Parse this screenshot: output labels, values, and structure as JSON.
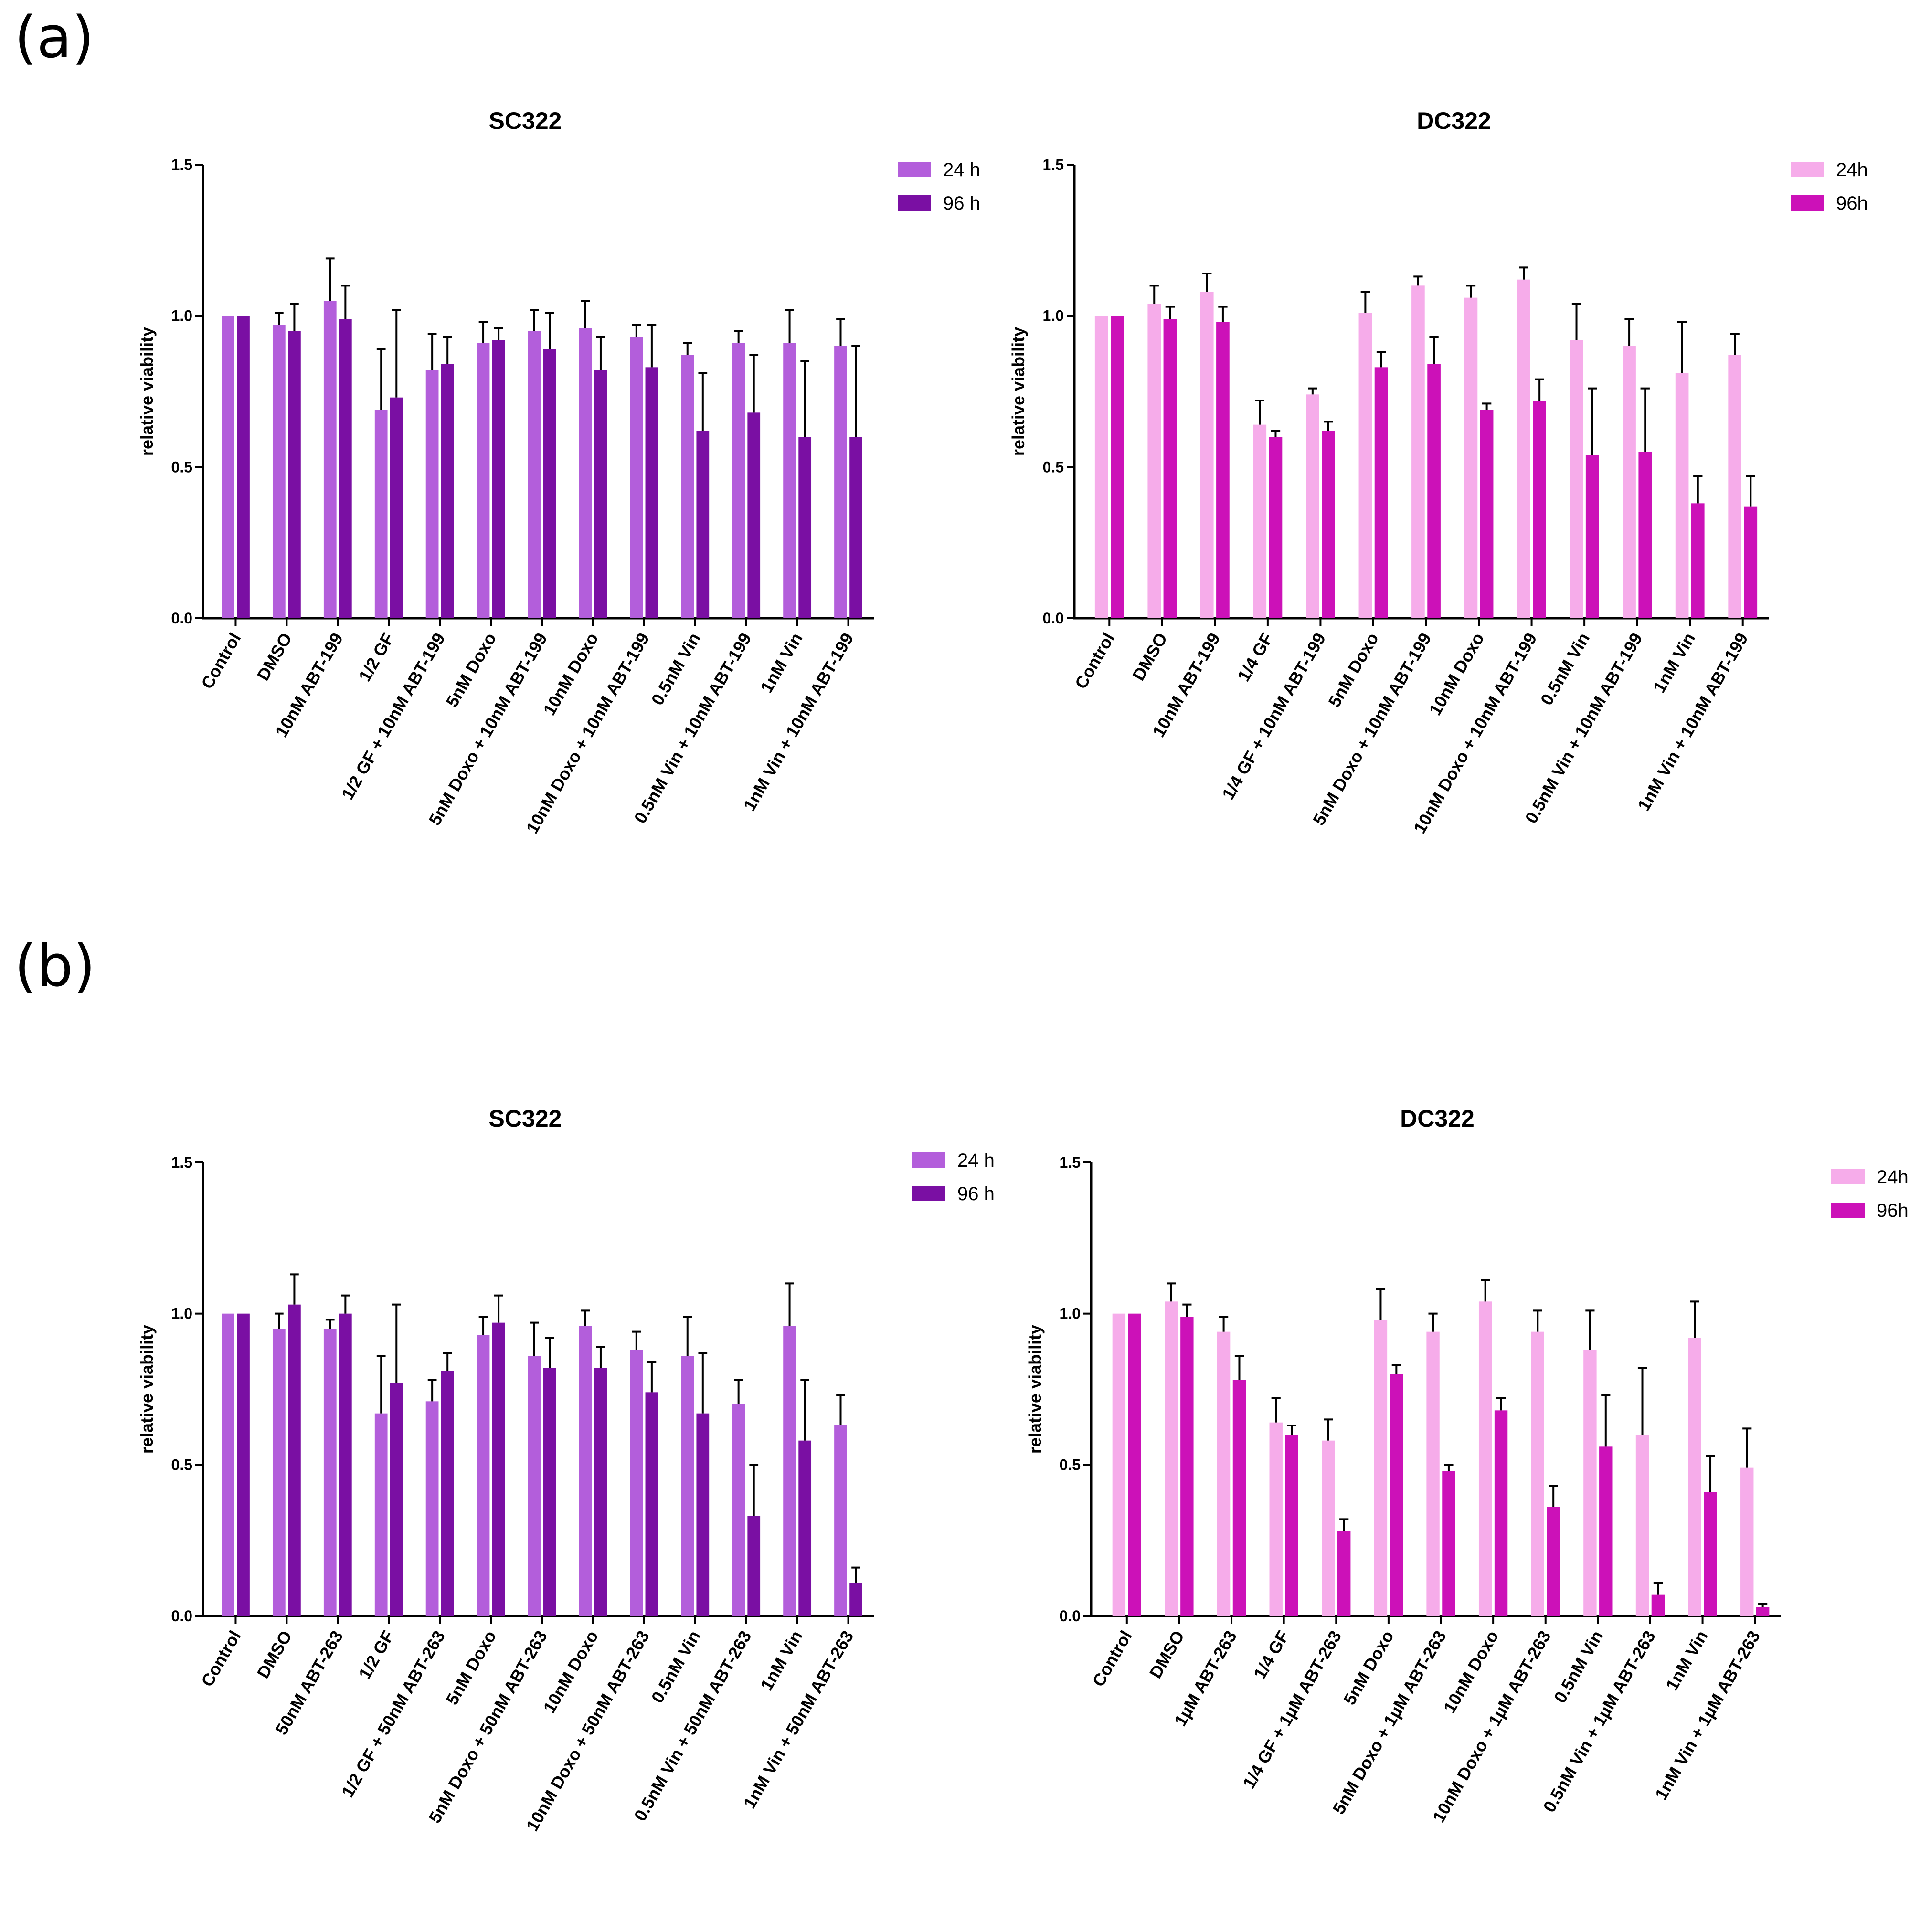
{
  "panels": [
    {
      "label": "(a)"
    },
    {
      "label": "(b)"
    }
  ],
  "chart_data": [
    {
      "type": "bar",
      "panel": "(a)",
      "title": "SC322",
      "ylabel": "relative viability",
      "ylim": [
        0,
        1.5
      ],
      "yticks": [
        "0.0",
        "0.5",
        "1.0",
        "1.5"
      ],
      "legend_position": "top-right",
      "categories": [
        "Control",
        "DMSO",
        "10nM ABT-199",
        "1/2 GF",
        "1/2 GF + 10nM ABT-199",
        "5nM Doxo",
        "5nM Doxo + 10nM ABT-199",
        "10nM Doxo",
        "10nM Doxo + 10nM ABT-199",
        "0.5nM Vin",
        "0.5nM Vin + 10nM ABT-199",
        "1nM Vin",
        "1nM Vin + 10nM ABT-199"
      ],
      "series": [
        {
          "name": "24 h",
          "color": "#b35edb",
          "values": [
            1.0,
            0.97,
            1.05,
            0.69,
            0.82,
            0.91,
            0.95,
            0.96,
            0.93,
            0.87,
            0.91,
            0.91,
            0.9
          ],
          "errors": [
            0,
            0.04,
            0.14,
            0.2,
            0.12,
            0.07,
            0.07,
            0.09,
            0.04,
            0.04,
            0.04,
            0.11,
            0.09
          ]
        },
        {
          "name": "96 h",
          "color": "#7a0fa3",
          "values": [
            1.0,
            0.95,
            0.99,
            0.73,
            0.84,
            0.92,
            0.89,
            0.82,
            0.83,
            0.62,
            0.68,
            0.6,
            0.6
          ],
          "errors": [
            0,
            0.09,
            0.11,
            0.29,
            0.09,
            0.04,
            0.12,
            0.11,
            0.14,
            0.19,
            0.19,
            0.25,
            0.3
          ]
        }
      ]
    },
    {
      "type": "bar",
      "panel": "(a)",
      "title": "DC322",
      "ylabel": "relative viability",
      "ylim": [
        0,
        1.5
      ],
      "yticks": [
        "0.0",
        "0.5",
        "1.0",
        "1.5"
      ],
      "legend_position": "top-right",
      "categories": [
        "Control",
        "DMSO",
        "10nM ABT-199",
        "1/4 GF",
        "1/4 GF + 10nM ABT-199",
        "5nM Doxo",
        "5nM Doxo + 10nM ABT-199",
        "10nM Doxo",
        "10nM Doxo + 10nM ABT-199",
        "0.5nM Vin",
        "0.5nM Vin + 10nM ABT-199",
        "1nM Vin",
        "1nM Vin + 10nM ABT-199"
      ],
      "series": [
        {
          "name": "24h",
          "color": "#f6acea",
          "values": [
            1.0,
            1.04,
            1.08,
            0.64,
            0.74,
            1.01,
            1.1,
            1.06,
            1.12,
            0.92,
            0.9,
            0.81,
            0.87
          ],
          "errors": [
            0,
            0.06,
            0.06,
            0.08,
            0.02,
            0.07,
            0.03,
            0.04,
            0.04,
            0.12,
            0.09,
            0.17,
            0.07
          ]
        },
        {
          "name": "96h",
          "color": "#cc11b8",
          "values": [
            1.0,
            0.99,
            0.98,
            0.6,
            0.62,
            0.83,
            0.84,
            0.69,
            0.72,
            0.54,
            0.55,
            0.38,
            0.37
          ],
          "errors": [
            0,
            0.04,
            0.05,
            0.02,
            0.03,
            0.05,
            0.09,
            0.02,
            0.07,
            0.22,
            0.21,
            0.09,
            0.1
          ]
        }
      ]
    },
    {
      "type": "bar",
      "panel": "(b)",
      "title": "SC322",
      "ylabel": "relative viability",
      "ylim": [
        0,
        1.5
      ],
      "yticks": [
        "0.0",
        "0.5",
        "1.0",
        "1.5"
      ],
      "legend_position": "top-right",
      "categories": [
        "Control",
        "DMSO",
        "50nM ABT-263",
        "1/2 GF",
        "1/2 GF + 50nM ABT-263",
        "5nM Doxo",
        "5nM Doxo + 50nM ABT-263",
        "10nM Doxo",
        "10nM Doxo + 50nM ABT-263",
        "0.5nM Vin",
        "0.5nM Vin + 50nM ABT-263",
        "1nM Vin",
        "1nM Vin + 50nM ABT-263"
      ],
      "series": [
        {
          "name": "24 h",
          "color": "#b35edb",
          "values": [
            1.0,
            0.95,
            0.95,
            0.67,
            0.71,
            0.93,
            0.86,
            0.96,
            0.88,
            0.86,
            0.7,
            0.96,
            0.63
          ],
          "errors": [
            0,
            0.05,
            0.03,
            0.19,
            0.07,
            0.06,
            0.11,
            0.05,
            0.06,
            0.13,
            0.08,
            0.14,
            0.1
          ]
        },
        {
          "name": "96 h",
          "color": "#7a0fa3",
          "values": [
            1.0,
            1.03,
            1.0,
            0.77,
            0.81,
            0.97,
            0.82,
            0.82,
            0.74,
            0.67,
            0.33,
            0.58,
            0.11
          ],
          "errors": [
            0,
            0.1,
            0.06,
            0.26,
            0.06,
            0.09,
            0.1,
            0.07,
            0.1,
            0.2,
            0.17,
            0.2,
            0.05
          ]
        }
      ]
    },
    {
      "type": "bar",
      "panel": "(b)",
      "title": "DC322",
      "ylabel": "relative viability",
      "ylim": [
        0,
        1.5
      ],
      "yticks": [
        "0.0",
        "0.5",
        "1.0",
        "1.5"
      ],
      "legend_position": "top-right",
      "categories": [
        "Control",
        "DMSO",
        "1µM ABT-263",
        "1/4 GF",
        "1/4 GF + 1µM ABT-263",
        "5nM Doxo",
        "5nM Doxo + 1µM ABT-263",
        "10nM Doxo",
        "10nM Doxo + 1µM ABT-263",
        "0.5nM Vin",
        "0.5nM Vin + 1µM ABT-263",
        "1nM Vin",
        "1nM Vin + 1µM ABT-263"
      ],
      "series": [
        {
          "name": "24h",
          "color": "#f6acea",
          "values": [
            1.0,
            1.04,
            0.94,
            0.64,
            0.58,
            0.98,
            0.94,
            1.04,
            0.94,
            0.88,
            0.6,
            0.92,
            0.49
          ],
          "errors": [
            0,
            0.06,
            0.05,
            0.08,
            0.07,
            0.1,
            0.06,
            0.07,
            0.07,
            0.13,
            0.22,
            0.12,
            0.13
          ]
        },
        {
          "name": "96h",
          "color": "#cc11b8",
          "values": [
            1.0,
            0.99,
            0.78,
            0.6,
            0.28,
            0.8,
            0.48,
            0.68,
            0.36,
            0.56,
            0.07,
            0.41,
            0.03
          ],
          "errors": [
            0,
            0.04,
            0.08,
            0.03,
            0.04,
            0.03,
            0.02,
            0.04,
            0.07,
            0.17,
            0.04,
            0.12,
            0.01
          ]
        }
      ]
    }
  ]
}
